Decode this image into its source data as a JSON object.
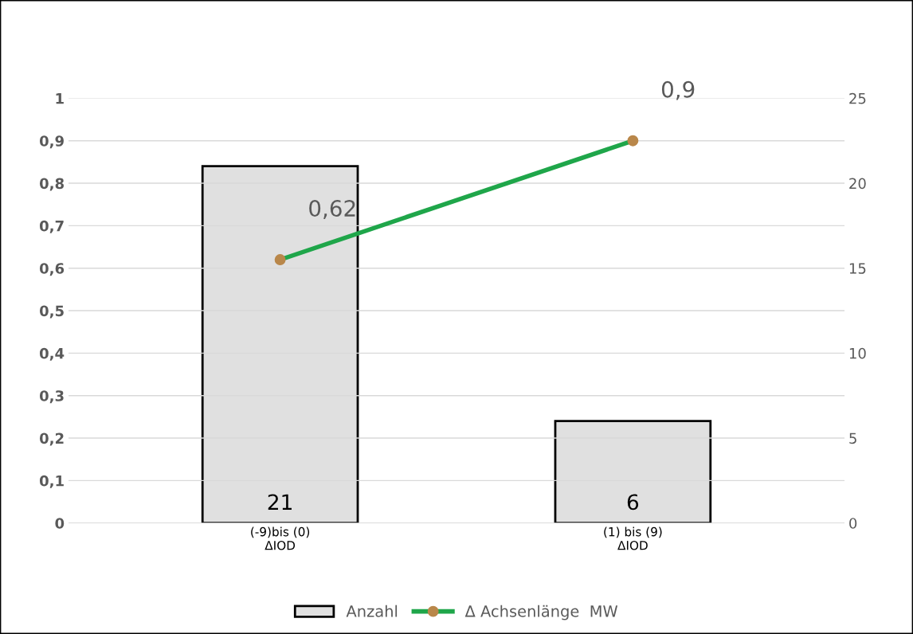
{
  "chart_data": {
    "type": "bar",
    "categories": [
      "(-9)bis (0)\nΔIOD",
      "(1) bis (9)\nΔIOD"
    ],
    "series": [
      {
        "name": "Anzahl",
        "axis": "y2",
        "color": "#e0e0e0",
        "values": [
          21,
          6
        ],
        "value_labels": [
          "21",
          "6"
        ]
      },
      {
        "name": "Δ Achsenlänge  MW",
        "type": "line",
        "axis": "y",
        "color": "#1fa64a",
        "marker": "circle",
        "values": [
          0.62,
          0.9
        ],
        "value_labels": [
          "0,62",
          "0,9"
        ]
      }
    ],
    "ylim": [
      0,
      1
    ],
    "yticks": [
      0,
      {
        "value": 0.1,
        "label": "0,1"
      },
      {
        "value": 0.2,
        "label": "0,2"
      },
      {
        "value": 0.3,
        "label": "0,3"
      },
      {
        "value": 0.4,
        "label": "0,4"
      },
      {
        "value": 0.5,
        "label": "0,5"
      },
      {
        "value": 0.6,
        "label": "0,6"
      },
      {
        "value": 0.7,
        "label": "0,7"
      },
      {
        "value": 0.8,
        "label": "0,8"
      },
      {
        "value": 0.9,
        "label": "0,9"
      },
      1
    ],
    "y2lim": [
      0,
      25
    ],
    "y2ticks": [
      0,
      5,
      10,
      15,
      20,
      25
    ],
    "grid": "y",
    "legend": "bottom"
  }
}
